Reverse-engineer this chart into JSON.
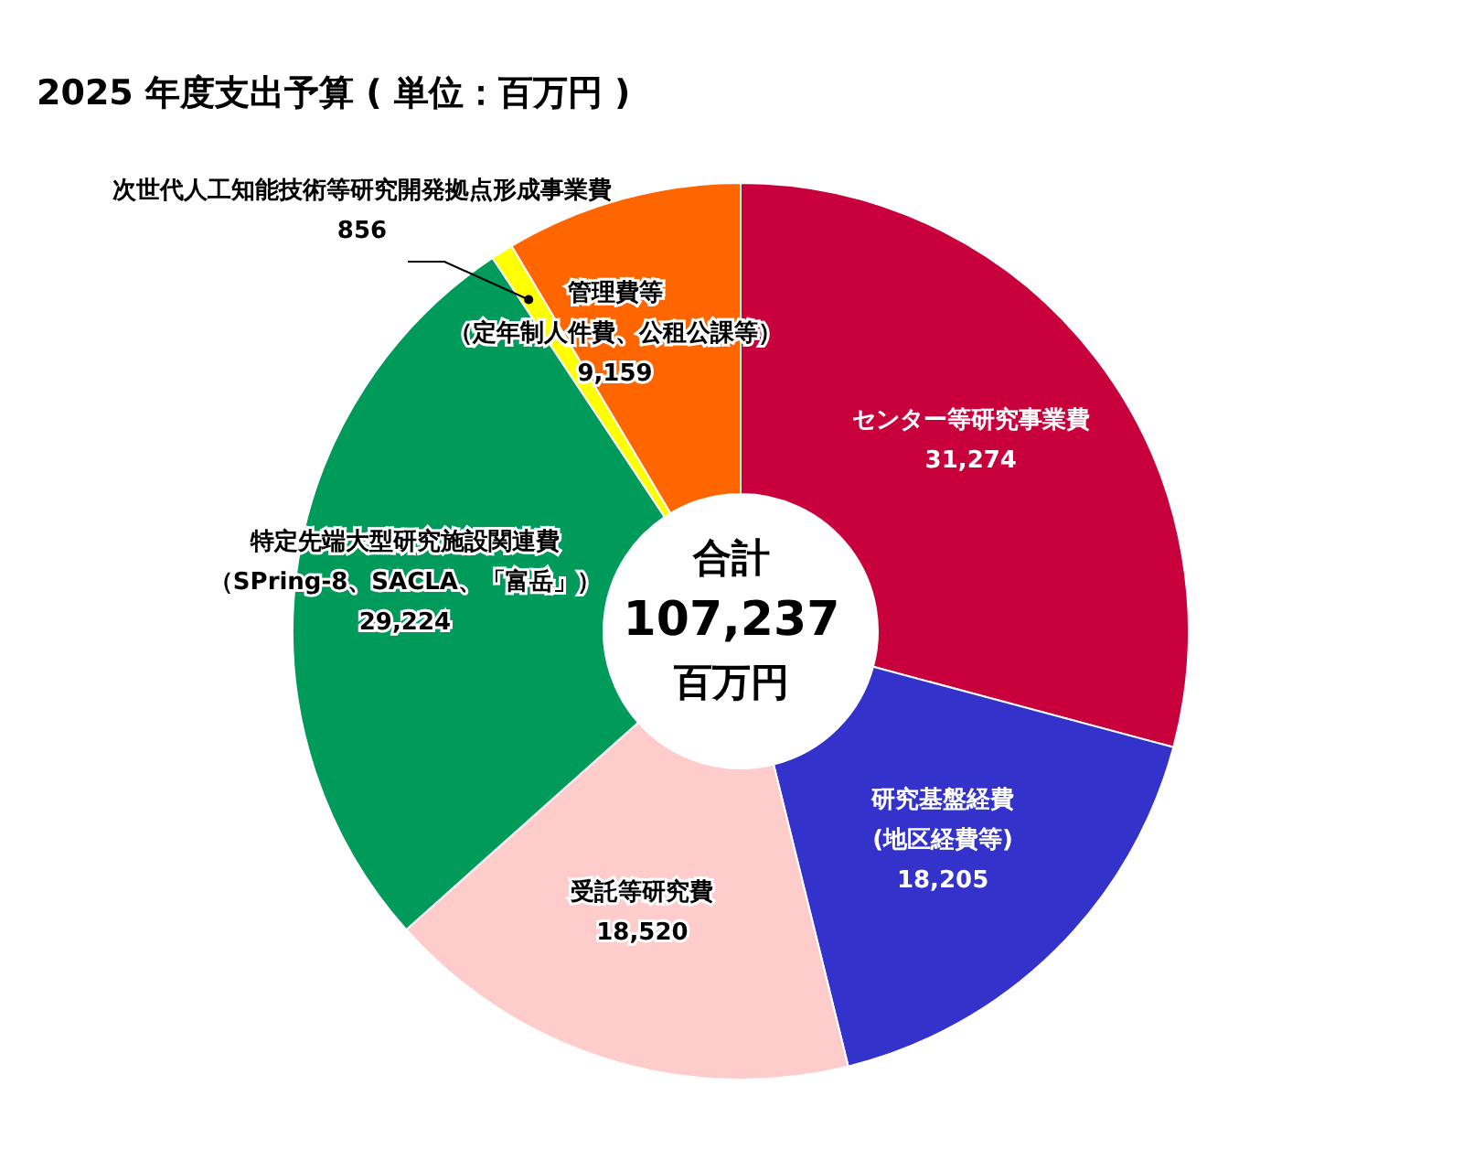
{
  "chart_data": {
    "type": "donut",
    "title": "2025 年度支出予算 ( 単位：百万円 )",
    "categories": [
      "センター等研究事業費",
      "研究基盤経費(地区経費等)",
      "受託等研究費",
      "特定先端大型研究施設関連費（SPring-8、SACLA、「富岳」）",
      "次世代人工知能技術等研究開発拠点形成事業費",
      "管理費等（定年制人件費、公租公課等）"
    ],
    "values": [
      31274,
      18205,
      18520,
      29224,
      856,
      9159
    ],
    "value_labels": [
      "31,274",
      "18,205",
      "18,520",
      "29,224",
      "856",
      "9,159"
    ],
    "colors": [
      "#c8003c",
      "#3333cc",
      "#ffcccc",
      "#009a5a",
      "#ffff00",
      "#ff6600"
    ],
    "legend": false,
    "annotations": [
      "合計",
      "107,237",
      "百万円"
    ]
  }
}
